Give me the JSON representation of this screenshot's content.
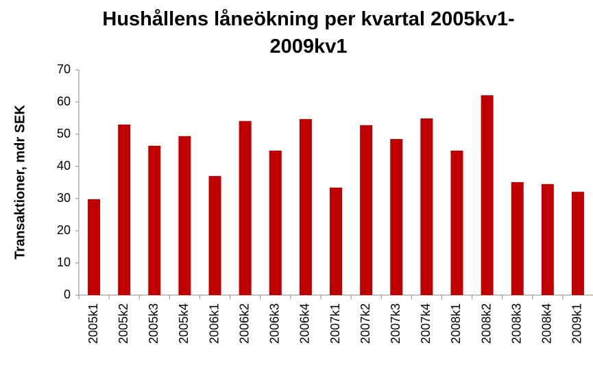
{
  "chart_data": {
    "type": "bar",
    "title": "Hushållens låneökning per kvartal 2005kv1-2009kv1",
    "y_label": "Transaktioner, mdr SEK",
    "categories": [
      "2005k1",
      "2005k2",
      "2005k3",
      "2005k4",
      "2006k1",
      "2006k2",
      "2006k3",
      "2006k4",
      "2007k1",
      "2007k2",
      "2007k3",
      "2007k4",
      "2008k1",
      "2008k2",
      "2008k3",
      "2008k4",
      "2009k1"
    ],
    "values": [
      29.8,
      53.0,
      46.4,
      49.4,
      37.0,
      54.1,
      44.9,
      54.7,
      33.4,
      52.8,
      48.5,
      54.9,
      44.9,
      62.1,
      35.1,
      34.5,
      32.1
    ],
    "color": "#c00000",
    "ylim": [
      0,
      70
    ],
    "yticks": [
      0,
      10,
      20,
      30,
      40,
      50,
      60,
      70
    ],
    "grid": false
  }
}
